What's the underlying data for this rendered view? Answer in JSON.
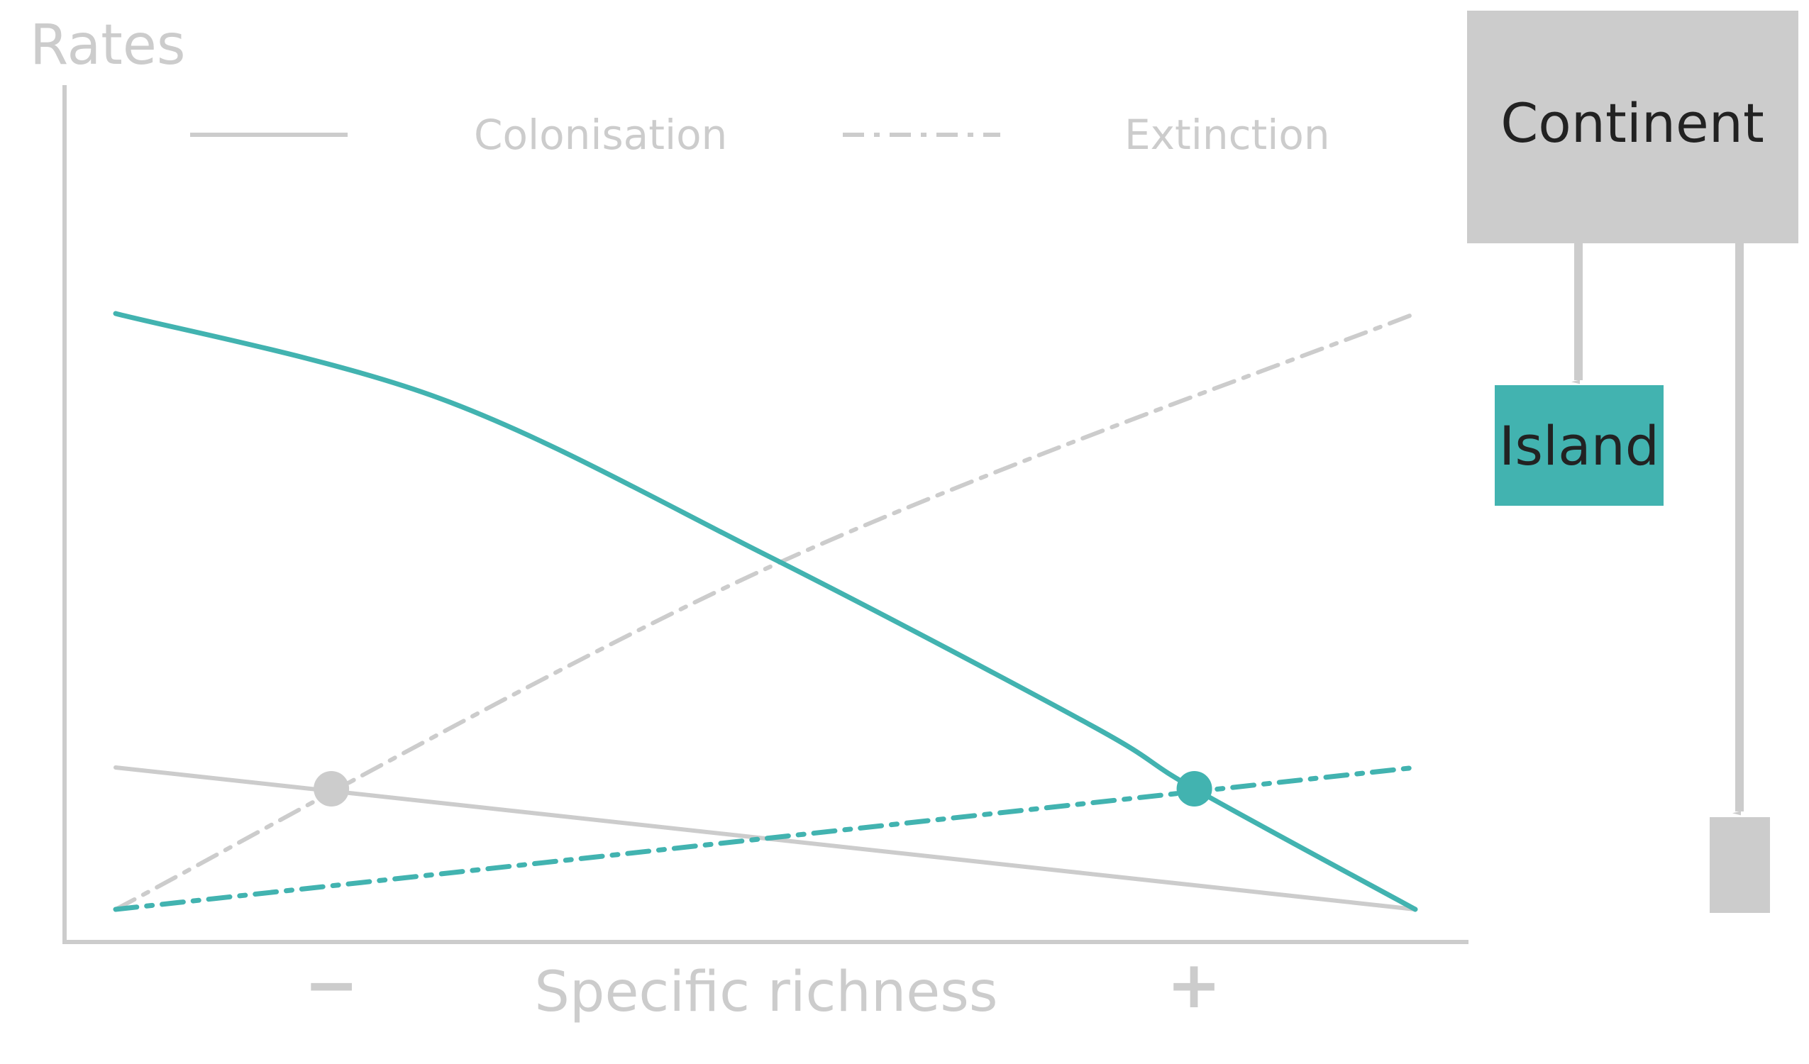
{
  "chart_data": {
    "type": "line",
    "ylabel": "Rates",
    "xlabel": "Specific richness",
    "x_ticks": [
      "−",
      "+"
    ],
    "legend": {
      "colonisation_label": "Colonisation",
      "extinction_label": "Extinction",
      "placement": "top"
    },
    "x_range": [
      0,
      1
    ],
    "y_range": [
      0,
      1
    ],
    "grid": false,
    "colors": {
      "continent": "#cccccc",
      "island": "#42b3b0"
    },
    "series": [
      {
        "kind": "colonisation",
        "group": "continent",
        "points": [
          [
            0,
            0.2
          ],
          [
            1,
            0
          ]
        ]
      },
      {
        "kind": "extinction",
        "group": "continent",
        "points": [
          [
            0,
            0
          ],
          [
            0.5,
            0.48
          ],
          [
            1,
            0.84
          ]
        ]
      },
      {
        "kind": "colonisation",
        "group": "island",
        "points": [
          [
            0,
            0.84
          ],
          [
            0.25,
            0.72
          ],
          [
            0.5,
            0.5
          ],
          [
            0.75,
            0.26
          ],
          [
            0.83,
            0.17
          ],
          [
            1,
            0
          ]
        ]
      },
      {
        "kind": "extinction",
        "group": "island",
        "points": [
          [
            0,
            0
          ],
          [
            0.5,
            0.1
          ],
          [
            1,
            0.2
          ]
        ]
      }
    ],
    "equilibria": [
      {
        "group": "continent",
        "x": 0.166,
        "y": 0.17
      },
      {
        "group": "island",
        "x": 0.83,
        "y": 0.17
      }
    ]
  },
  "diagram": {
    "continent_label": "Continent",
    "island_label": "Island",
    "small_box_label": ""
  }
}
